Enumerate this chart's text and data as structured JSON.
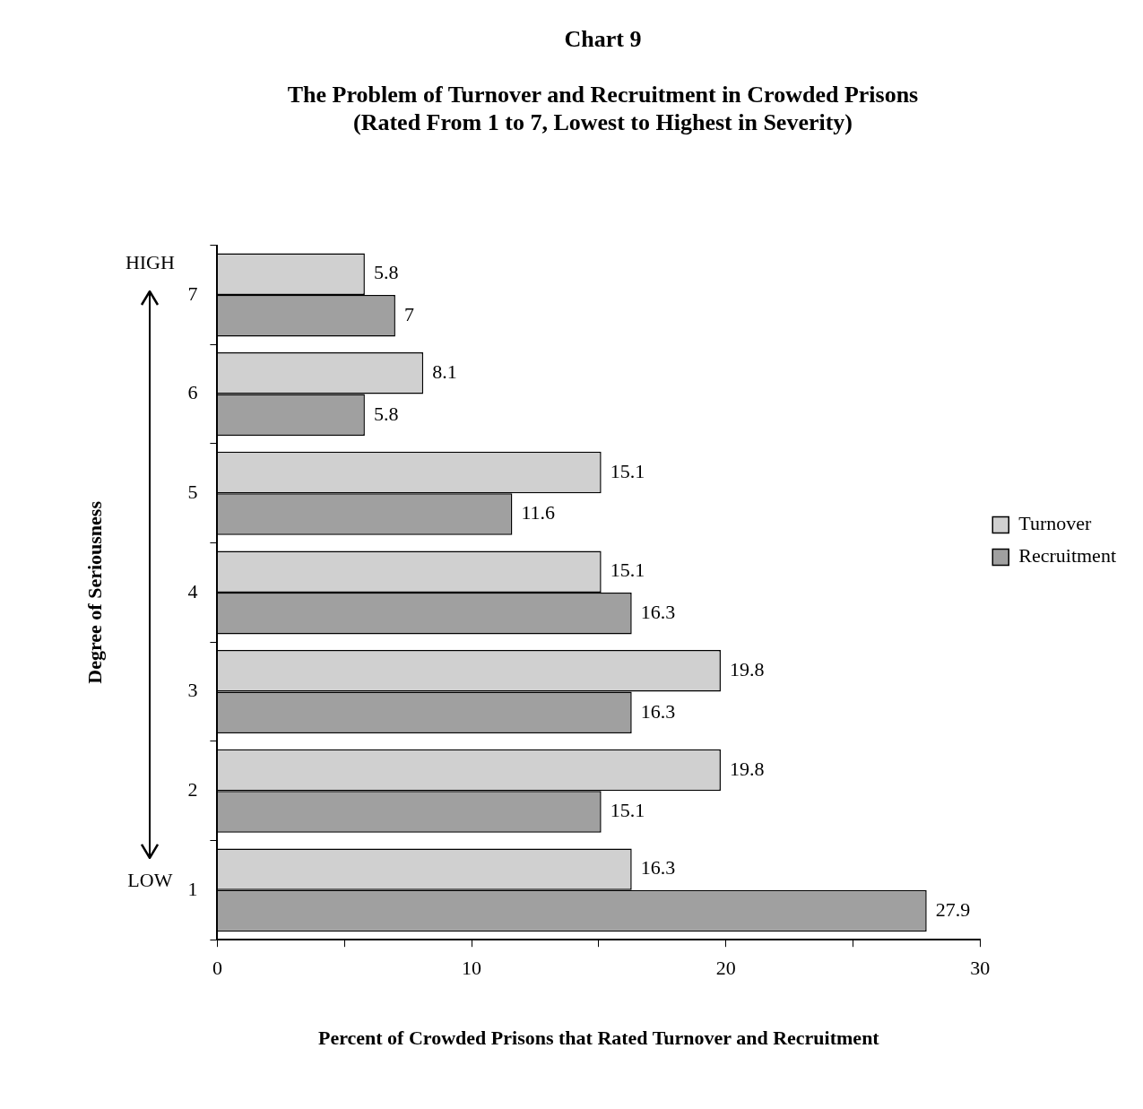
{
  "chart_data": {
    "type": "bar",
    "orientation": "horizontal",
    "title": "Chart 9",
    "subtitle": "The Problem of Turnover and Recruitment in Crowded Prisons\n(Rated From 1 to 7, Lowest to Highest in Severity)",
    "xlabel": "Percent of Crowded Prisons that Rated Turnover and Recruitment",
    "ylabel": "Degree of Seriousness",
    "categories": [
      "7",
      "6",
      "5",
      "4",
      "3",
      "2",
      "1"
    ],
    "series": [
      {
        "name": "Turnover",
        "color": "#d0d0d0",
        "values": [
          5.8,
          8.1,
          15.1,
          15.1,
          19.8,
          19.8,
          16.3
        ]
      },
      {
        "name": "Recruitment",
        "color": "#a0a0a0",
        "values": [
          7,
          5.8,
          11.6,
          16.3,
          16.3,
          15.1,
          27.9
        ]
      }
    ],
    "xlim": [
      0,
      30
    ],
    "xticks": [
      0,
      {
        "value": 5,
        "label": null
      },
      10,
      {
        "value": 15,
        "label": null
      },
      20,
      {
        "value": 25,
        "label": null
      },
      30
    ],
    "annotations": [
      "HIGH",
      "LOW"
    ],
    "data_labels": true,
    "grid": false,
    "legend": "right"
  }
}
